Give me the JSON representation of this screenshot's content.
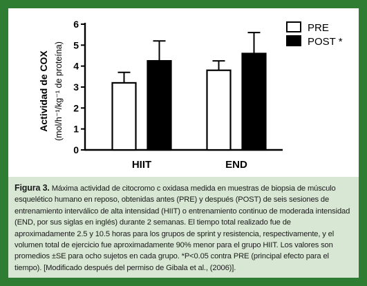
{
  "colors": {
    "border": "#2e7d32",
    "caption_bg": "#d7e7d3",
    "pre": "#ffffff",
    "post": "#000000"
  },
  "chart_data": {
    "type": "bar",
    "categories": [
      "HIIT",
      "END"
    ],
    "series": [
      {
        "name": "PRE",
        "values": [
          3.2,
          3.8
        ],
        "errors": [
          0.5,
          0.45
        ],
        "color": "#ffffff"
      },
      {
        "name": "POST *",
        "values": [
          4.25,
          4.6
        ],
        "errors": [
          0.95,
          1.0
        ],
        "color": "#000000"
      }
    ],
    "ylim": [
      0,
      6
    ],
    "yticks": [
      "0",
      "1",
      "2",
      "3",
      "4",
      "5",
      "6"
    ],
    "ylabel_main": "Actividad de COX",
    "ylabel_sub": "(mol/h⁻¹/kg⁻¹ de proteína)",
    "legend": [
      "PRE",
      "POST *"
    ],
    "legend_position": "top-right",
    "grid": false
  },
  "caption": {
    "label": "Figura 3.",
    "text": "Máxima actividad de citocromo c oxidasa medida en muestras de biopsia de músculo esquelético humano en reposo, obtenidas antes (PRE) y después (POST) de seis sesiones de entrenamiento interválico de alta intensidad (HIIT) o entrenamiento continuo de moderada intensidad (END, por sus siglas en inglés) durante 2 semanas. El tiempo total realizado fue de aproximadamente 2.5 y 10.5 horas para los grupos de sprint y resistencia, respectivamente, y el volumen total de ejercicio fue aproximadamente 90% menor para el grupo HIIT. Los valores son promedios ±SE para ocho sujetos en cada grupo. *P<0.05 contra PRE (principal efecto para el tiempo). [Modificado después del permiso de Gibala et al., (2006)]."
  }
}
